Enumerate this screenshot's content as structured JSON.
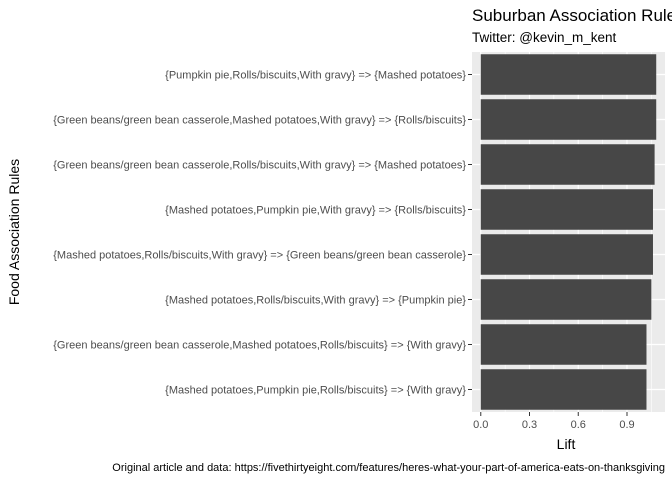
{
  "chart_data": {
    "type": "bar",
    "orientation": "horizontal",
    "title": "Suburban Association Rules",
    "subtitle": "Twitter: @kevin_m_kent",
    "xlabel": "Lift",
    "ylabel": "Food Association Rules",
    "caption": "Original article and data: https://fivethirtyeight.com/features/heres-what-your-part-of-america-eats-on-thanksgiving",
    "categories": [
      "{Pumpkin pie,Rolls/biscuits,With gravy} => {Mashed potatoes}",
      "{Green beans/green bean casserole,Mashed potatoes,With gravy} => {Rolls/biscuits}",
      "{Green beans/green bean casserole,Rolls/biscuits,With gravy} => {Mashed potatoes}",
      "{Mashed potatoes,Pumpkin pie,With gravy} => {Rolls/biscuits}",
      "{Mashed potatoes,Rolls/biscuits,With gravy} => {Green beans/green bean casserole}",
      "{Mashed potatoes,Rolls/biscuits,With gravy} => {Pumpkin pie}",
      "{Green beans/green bean casserole,Mashed potatoes,Rolls/biscuits} => {With gravy}",
      "{Mashed potatoes,Pumpkin pie,Rolls/biscuits} => {With gravy}"
    ],
    "values": [
      1.08,
      1.08,
      1.07,
      1.06,
      1.06,
      1.05,
      1.02,
      1.02
    ],
    "xticks": [
      "0.0",
      "0.3",
      "0.6",
      "0.9"
    ],
    "xlim": [
      -0.054,
      1.134
    ],
    "grid": true,
    "bar_color": "#474747",
    "panel_color": "#ebebeb"
  }
}
